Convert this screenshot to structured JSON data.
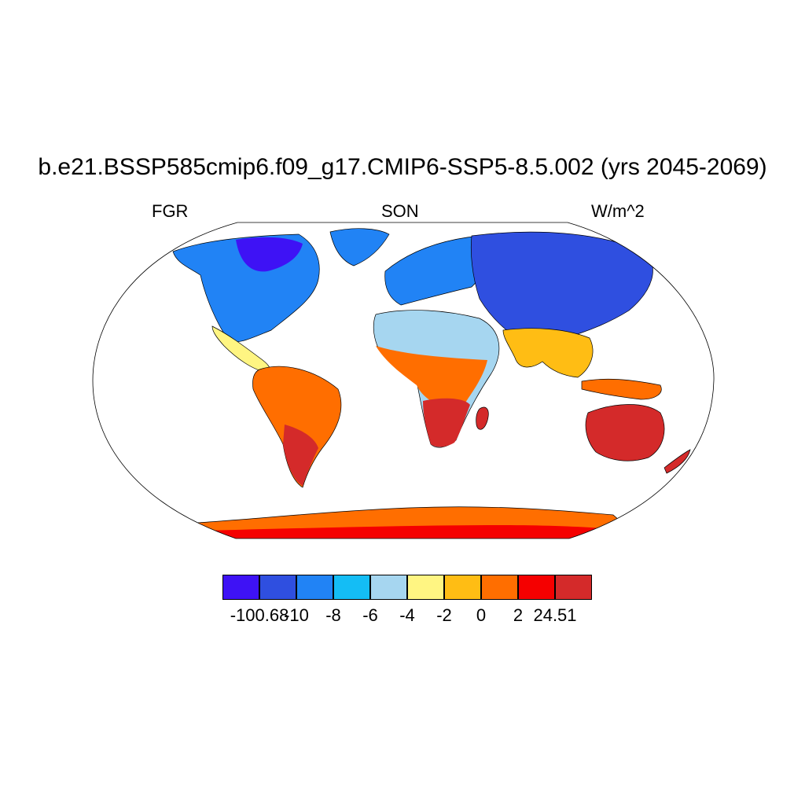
{
  "title": "b.e21.BSSP585cmip6.f09_g17.CMIP6-SSP5-8.5.002 (yrs 2045-2069)",
  "left_label": "FGR",
  "center_label": "SON",
  "right_label": "W/m^2",
  "colorbar": {
    "colors": [
      "#3e12f5",
      "#2f4fe0",
      "#2183f5",
      "#14bdf5",
      "#a6d6f0",
      "#fff582",
      "#ffbd14",
      "#ff6e00",
      "#f50000",
      "#d42a2a"
    ],
    "tick_labels": [
      "-100.68",
      "-10",
      "-8",
      "-6",
      "-4",
      "-2",
      "0",
      "2",
      "24.51"
    ]
  },
  "colors": {
    "land_outline": "#000000",
    "ocean": "#ffffff"
  }
}
